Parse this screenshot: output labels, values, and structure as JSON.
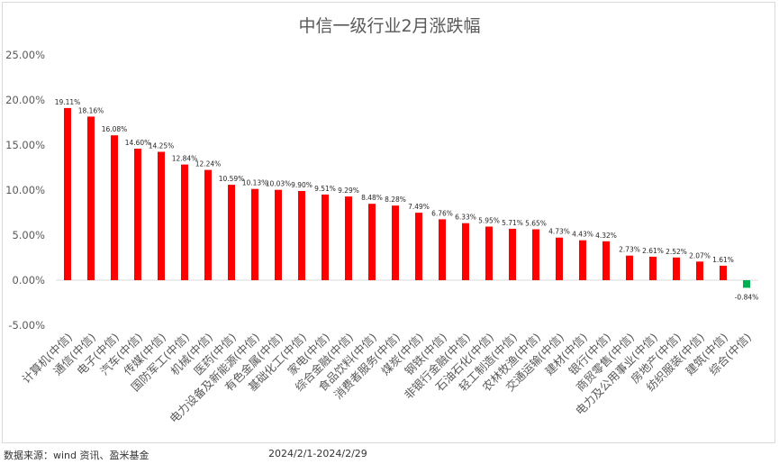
{
  "chart_data": {
    "type": "bar",
    "title": "中信一级行业2月涨跌幅",
    "categories": [
      "计算机(中信)",
      "通信(中信)",
      "电子(中信)",
      "汽车(中信)",
      "传媒(中信)",
      "国防军工(中信)",
      "机械(中信)",
      "医药(中信)",
      "电力设备及新能源(中信)",
      "有色金属(中信)",
      "基础化工(中信)",
      "家电(中信)",
      "综合金融(中信)",
      "食品饮料(中信)",
      "消费者服务(中信)",
      "煤炭(中信)",
      "钢铁(中信)",
      "非银行金融(中信)",
      "石油石化(中信)",
      "轻工制造(中信)",
      "农林牧渔(中信)",
      "交通运输(中信)",
      "建材(中信)",
      "银行(中信)",
      "商贸零售(中信)",
      "电力及公用事业(中信)",
      "房地产(中信)",
      "纺织服装(中信)",
      "建筑(中信)",
      "综合(中信)"
    ],
    "values": [
      19.11,
      18.16,
      16.08,
      14.6,
      14.25,
      12.84,
      12.24,
      10.59,
      10.13,
      10.03,
      9.9,
      9.51,
      9.29,
      8.48,
      8.28,
      7.49,
      6.76,
      6.33,
      5.95,
      5.71,
      5.65,
      4.73,
      4.43,
      4.32,
      2.73,
      2.61,
      2.52,
      2.07,
      1.61,
      -0.84
    ],
    "data_labels": [
      "19.11%",
      "18.16%",
      "16.08%",
      "14.60%",
      "14.25%",
      "12.84%",
      "12.24%",
      "10.59%",
      "10.13%",
      "10.03%",
      "9.90%",
      "9.51%",
      "9.29%",
      "8.48%",
      "8.28%",
      "7.49%",
      "6.76%",
      "6.33%",
      "5.95%",
      "5.71%",
      "5.65%",
      "4.73%",
      "4.43%",
      "4.32%",
      "2.73%",
      "2.61%",
      "2.52%",
      "2.07%",
      "1.61%",
      "-0.84%"
    ],
    "ylim": [
      -5,
      25
    ],
    "yticks": [
      -5,
      0,
      5,
      10,
      15,
      20,
      25
    ],
    "ytick_labels": [
      "-5.00%",
      "0.00%",
      "5.00%",
      "10.00%",
      "15.00%",
      "20.00%",
      "25.00%"
    ],
    "grid": false,
    "colors": {
      "positive": "#ff0000",
      "negative": "#00b050",
      "axis": "#d9d9d9",
      "text": "#595959"
    }
  },
  "footer": {
    "source": "数据来源：wind 资讯、盈米基金",
    "period": "2024/2/1-2024/2/29"
  }
}
